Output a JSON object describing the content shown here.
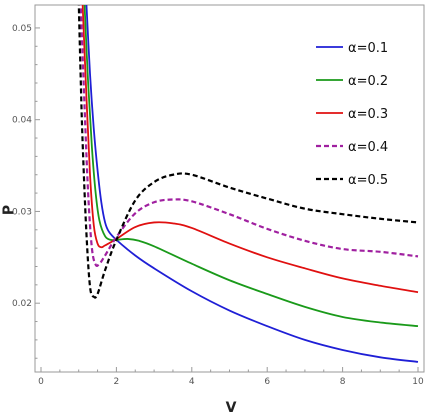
{
  "chart_data": {
    "type": "line",
    "xlabel": "V",
    "ylabel": "P",
    "xlim": [
      0,
      10
    ],
    "ylim": [
      0.0125,
      0.0525
    ],
    "xticks": [
      0,
      2,
      4,
      6,
      8,
      10
    ],
    "yticks": [
      0.02,
      0.03,
      0.04,
      0.05
    ],
    "grid": false,
    "legend_position": "top-right",
    "series": [
      {
        "name": "α=0.1",
        "color": "#1f1fd6",
        "dash": "solid",
        "points": [
          [
            1.2,
            0.053
          ],
          [
            1.3,
            0.045
          ],
          [
            1.4,
            0.039
          ],
          [
            1.5,
            0.0345
          ],
          [
            1.6,
            0.031
          ],
          [
            1.7,
            0.0288
          ],
          [
            1.8,
            0.0278
          ],
          [
            2.0,
            0.0269
          ],
          [
            2.5,
            0.0252
          ],
          [
            3,
            0.0238
          ],
          [
            4,
            0.0213
          ],
          [
            5,
            0.0192
          ],
          [
            6,
            0.0175
          ],
          [
            7,
            0.016
          ],
          [
            8,
            0.0149
          ],
          [
            9,
            0.0141
          ],
          [
            10,
            0.0136
          ]
        ]
      },
      {
        "name": "α=0.2",
        "color": "#1a9a1a",
        "dash": "solid",
        "points": [
          [
            1.15,
            0.053
          ],
          [
            1.25,
            0.044
          ],
          [
            1.35,
            0.037
          ],
          [
            1.45,
            0.032
          ],
          [
            1.55,
            0.029
          ],
          [
            1.7,
            0.0273
          ],
          [
            1.85,
            0.0269
          ],
          [
            2.0,
            0.0269
          ],
          [
            2.3,
            0.027
          ],
          [
            2.6,
            0.0268
          ],
          [
            3,
            0.0262
          ],
          [
            4,
            0.0243
          ],
          [
            5,
            0.0225
          ],
          [
            6,
            0.021
          ],
          [
            7,
            0.0196
          ],
          [
            8,
            0.0185
          ],
          [
            9,
            0.0179
          ],
          [
            10,
            0.0175
          ]
        ]
      },
      {
        "name": "α=0.3",
        "color": "#e01010",
        "dash": "solid",
        "points": [
          [
            1.1,
            0.053
          ],
          [
            1.2,
            0.043
          ],
          [
            1.3,
            0.034
          ],
          [
            1.4,
            0.0285
          ],
          [
            1.5,
            0.0265
          ],
          [
            1.6,
            0.0261
          ],
          [
            1.7,
            0.0263
          ],
          [
            2.0,
            0.027
          ],
          [
            2.5,
            0.0283
          ],
          [
            3.0,
            0.0288
          ],
          [
            3.5,
            0.0287
          ],
          [
            4,
            0.0282
          ],
          [
            5,
            0.0265
          ],
          [
            6,
            0.025
          ],
          [
            7,
            0.0238
          ],
          [
            8,
            0.0227
          ],
          [
            9,
            0.0219
          ],
          [
            10,
            0.0212
          ]
        ]
      },
      {
        "name": "α=0.4",
        "color": "#a020a0",
        "dash": "dashed",
        "points": [
          [
            1.05,
            0.053
          ],
          [
            1.15,
            0.042
          ],
          [
            1.25,
            0.032
          ],
          [
            1.35,
            0.026
          ],
          [
            1.45,
            0.0242
          ],
          [
            1.55,
            0.0243
          ],
          [
            1.7,
            0.0252
          ],
          [
            2.0,
            0.0272
          ],
          [
            2.5,
            0.0298
          ],
          [
            3.0,
            0.031
          ],
          [
            3.5,
            0.0313
          ],
          [
            4,
            0.0311
          ],
          [
            5,
            0.0297
          ],
          [
            6,
            0.0281
          ],
          [
            7,
            0.0268
          ],
          [
            8,
            0.0259
          ],
          [
            9,
            0.0256
          ],
          [
            10,
            0.0251
          ]
        ]
      },
      {
        "name": "α=0.5",
        "color": "#000000",
        "dash": "dashed",
        "points": [
          [
            1.0,
            0.053
          ],
          [
            1.05,
            0.045
          ],
          [
            1.1,
            0.038
          ],
          [
            1.2,
            0.028
          ],
          [
            1.3,
            0.0218
          ],
          [
            1.4,
            0.0207
          ],
          [
            1.5,
            0.021
          ],
          [
            1.7,
            0.0236
          ],
          [
            2.0,
            0.0269
          ],
          [
            2.5,
            0.0312
          ],
          [
            3.0,
            0.0332
          ],
          [
            3.5,
            0.034
          ],
          [
            4,
            0.034
          ],
          [
            5,
            0.0326
          ],
          [
            6,
            0.0314
          ],
          [
            7,
            0.0303
          ],
          [
            8,
            0.0297
          ],
          [
            9,
            0.0292
          ],
          [
            10,
            0.0288
          ]
        ]
      }
    ]
  }
}
